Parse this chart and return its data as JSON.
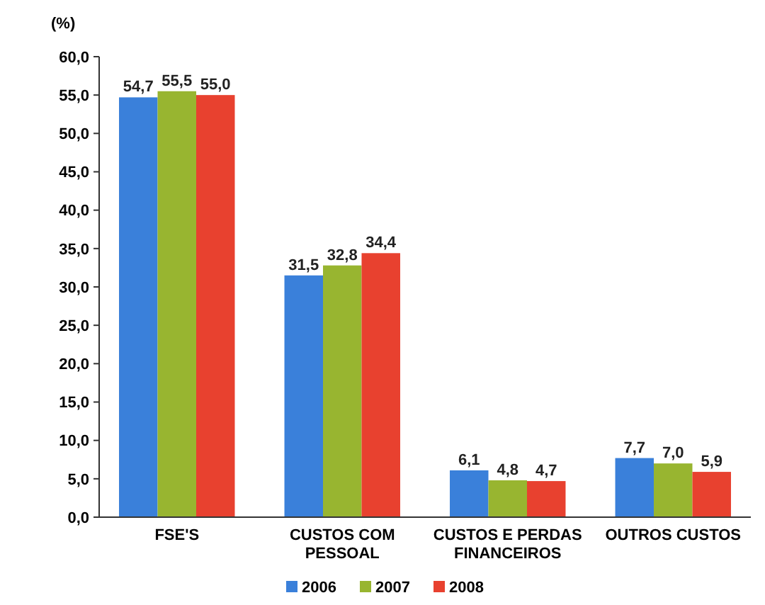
{
  "chart_data": {
    "type": "bar",
    "ylabel": "(%)",
    "categories": [
      "FSE'S",
      "CUSTOS COM PESSOAL",
      "CUSTOS E PERDAS FINANCEIROS",
      "OUTROS CUSTOS"
    ],
    "series": [
      {
        "name": "2006",
        "color": "#3a80da",
        "values": [
          54.7,
          31.5,
          6.1,
          7.7
        ],
        "value_labels": [
          "54,7",
          "31,5",
          "6,1",
          "7,7"
        ]
      },
      {
        "name": "2007",
        "color": "#98b530",
        "values": [
          55.5,
          32.8,
          4.8,
          7.0
        ],
        "value_labels": [
          "55,5",
          "32,8",
          "4,8",
          "7,0"
        ]
      },
      {
        "name": "2008",
        "color": "#e8412f",
        "values": [
          55.0,
          34.4,
          4.7,
          5.9
        ],
        "value_labels": [
          "55,0",
          "34,4",
          "4,7",
          "5,9"
        ]
      }
    ],
    "ylim": [
      0,
      60
    ],
    "yticks": [
      {
        "value": 0,
        "label": "0,0"
      },
      {
        "value": 5,
        "label": "5,0"
      },
      {
        "value": 10,
        "label": "10,0"
      },
      {
        "value": 15,
        "label": "15,0"
      },
      {
        "value": 20,
        "label": "20,0"
      },
      {
        "value": 25,
        "label": "25,0"
      },
      {
        "value": 30,
        "label": "30,0"
      },
      {
        "value": 35,
        "label": "35,0"
      },
      {
        "value": 40,
        "label": "40,0"
      },
      {
        "value": 45,
        "label": "45,0"
      },
      {
        "value": 50,
        "label": "50,0"
      },
      {
        "value": 55,
        "label": "55,0"
      },
      {
        "value": 60,
        "label": "60,0"
      }
    ],
    "legend": "bottom"
  }
}
